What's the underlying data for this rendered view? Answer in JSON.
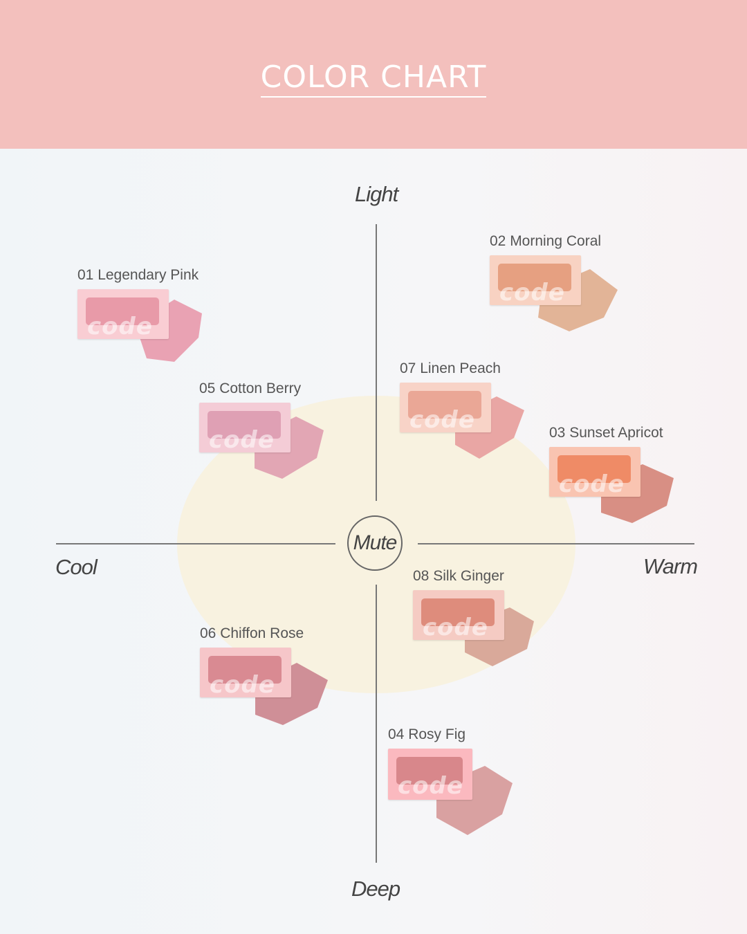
{
  "header": {
    "title": "COLOR CHART"
  },
  "axes": {
    "top": "Light",
    "bottom": "Deep",
    "left": "Cool",
    "right": "Warm",
    "center": "Mute"
  },
  "shades": [
    {
      "id": "01",
      "name": "01 Legendary Pink",
      "case": "#f9cdd3",
      "pan": "#e89aa8",
      "crumb": "#e9a2b3"
    },
    {
      "id": "02",
      "name": "02 Morning Coral",
      "case": "#f8d2c2",
      "pan": "#e6a081",
      "crumb": "#e2b497"
    },
    {
      "id": "03",
      "name": "03 Sunset Apricot",
      "case": "#f9c4b1",
      "pan": "#ef8b66",
      "crumb": "#d88f84"
    },
    {
      "id": "04",
      "name": "04 Rosy Fig",
      "case": "#fbb9bf",
      "pan": "#d8878b",
      "crumb": "#d9a1a1"
    },
    {
      "id": "05",
      "name": "05 Cotton Berry",
      "case": "#f4ccd6",
      "pan": "#dfa0b4",
      "crumb": "#e2a6b4"
    },
    {
      "id": "06",
      "name": "06 Chiffon Rose",
      "case": "#f6c6c9",
      "pan": "#d98a92",
      "crumb": "#cf8f97"
    },
    {
      "id": "07",
      "name": "07 Linen Peach",
      "case": "#f8d3c7",
      "pan": "#eaa796",
      "crumb": "#e9a6a4"
    },
    {
      "id": "08",
      "name": "08 Silk Ginger",
      "case": "#f5cbc3",
      "pan": "#de8c7c",
      "crumb": "#d9a99a"
    }
  ]
}
